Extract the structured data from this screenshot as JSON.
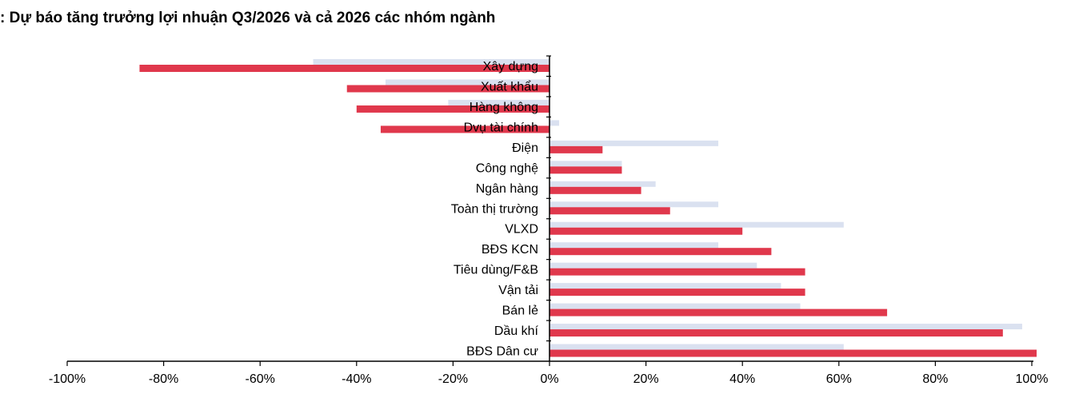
{
  "chart_data": {
    "type": "bar",
    "orientation": "horizontal",
    "title": ": Dự báo tăng trưởng lợi nhuận Q3/2026 và cả 2026 các nhóm ngành",
    "categories": [
      "Xây dựng",
      "Xuất khẩu",
      "Hàng không",
      "Dvụ tài chính",
      "Điện",
      "Công nghệ",
      "Ngân hàng",
      "Toàn thị trường",
      "VLXD",
      "BĐS KCN",
      "Tiêu dùng/F&B",
      "Vận tải",
      "Bán lẻ",
      "Dầu khí",
      "BĐS Dân cư"
    ],
    "series": [
      {
        "values": [
          -49,
          -34,
          -21,
          2,
          35,
          15,
          22,
          35,
          61,
          35,
          43,
          48,
          52,
          98,
          61
        ],
        "color": "#dae1f0"
      },
      {
        "values": [
          -85,
          -42,
          -40,
          -35,
          11,
          15,
          19,
          25,
          40,
          46,
          53,
          53,
          70,
          94,
          101
        ],
        "color": "#e0384c"
      }
    ],
    "xlim": [
      -100,
      100
    ],
    "xticks": [
      "-100%",
      "-80%",
      "-60%",
      "-40%",
      "-20%",
      "0%",
      "20%",
      "40%",
      "60%",
      "80%",
      "100%"
    ],
    "grid": false,
    "legend": "none"
  }
}
